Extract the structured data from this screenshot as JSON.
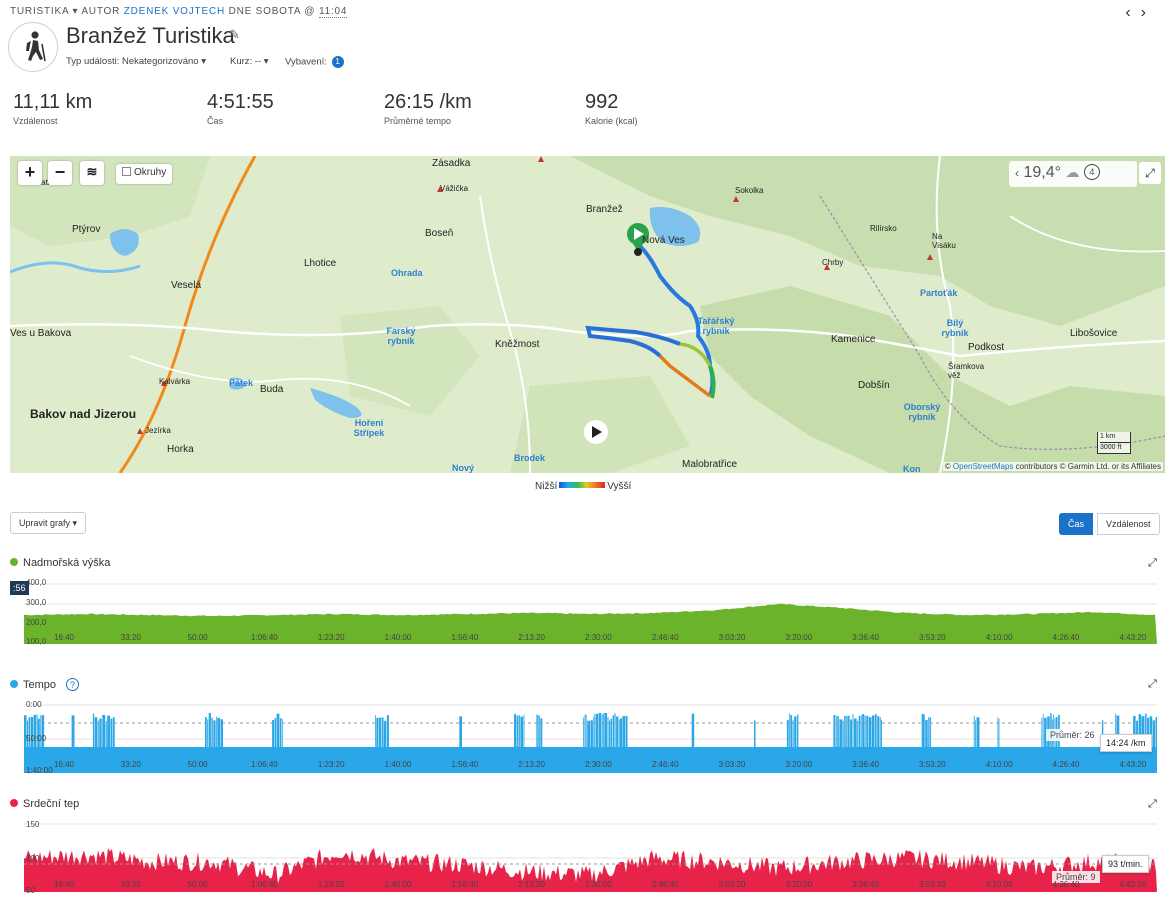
{
  "header": {
    "activity_type": "TURISTIKA",
    "author_prefix": "AUTOR",
    "author_name": "ZDENEK VOJTECH",
    "day_text": "DNE SOBOTA @",
    "time": "11:04",
    "prev_icon": "chevron-left-icon",
    "next_icon": "chevron-right-icon"
  },
  "activity": {
    "title": "Branžež Turistika",
    "icon": "hiker-icon",
    "event_type": "Typ události: Nekategorizováno",
    "course": "Kurz: --",
    "gear_label": "Vybavení:",
    "gear_count": "1"
  },
  "stats": [
    {
      "value": "11,11 km",
      "label": "Vzdálenost"
    },
    {
      "value": "4:51:55",
      "label": "Čas"
    },
    {
      "value": "26:15 /km",
      "label": "Průměrné tempo"
    },
    {
      "value": "992",
      "label": "Kalorie (kcal)"
    }
  ],
  "map": {
    "okruhy": "Okruhy",
    "temperature": "19,4°",
    "wind": "4",
    "scale_km": "1 km",
    "scale_ft": "3000 ft",
    "attribution_prefix": "©",
    "attribution_link": "OpenStreetMaps",
    "attribution_rest": "contributors © Garmin Ltd. or its Affiliates",
    "labels": {
      "zasadka": "Zásadka",
      "vazicka": "Vážička",
      "sokolka": "Sokolka",
      "branzez": "Branžež",
      "nova_ves": "Nová Ves",
      "ptyrov": "Ptýrov",
      "bosen": "Boseň",
      "lhotice": "Lhotice",
      "ohrada": "Ohrada",
      "vesela": "Veselá",
      "ves_u_bakova": "Ves u Bakova",
      "farsky": "Farský rybník",
      "kneznost": "Kněžmost",
      "tararsky": "Tařářský rybník",
      "chrby": "Chrby",
      "rilirsko": "Rilírsko",
      "na_visaku": "Na Visáku",
      "partotak": "Partoťák",
      "bily": "Bílý rybník",
      "kamenice": "Kamenice",
      "podkost": "Podkost",
      "libosovice": "Libošovice",
      "sramkova": "Šramkova věž",
      "dobsin": "Dobšín",
      "obora": "Oborský rybník",
      "kalvarka": "Kalvárka",
      "patek": "Pátek",
      "buda": "Buda",
      "bakov": "Bakov nad Jizerou",
      "horeni": "Hořeni Střípek",
      "jezirka": "Jezírka",
      "horka": "Horka",
      "brodek": "Brodek",
      "novy": "Nový",
      "malobratrice": "Malobratřice",
      "kon": "Kon",
      "blatka": "Blatka"
    }
  },
  "legend": {
    "low": "Nižší",
    "high": "Vyšší"
  },
  "controls": {
    "edit_charts": "Upravit grafy",
    "time": "Čas",
    "distance": "Vzdálenost"
  },
  "x_ticks": [
    "16:40",
    "33:20",
    "50:00",
    "1:06:40",
    "1:23:20",
    "1:40:00",
    "1:56:40",
    "2:13:20",
    "2:30:00",
    "2:46:40",
    "3:03:20",
    "3:20:00",
    "3:36:40",
    "3:53:20",
    "4:10:00",
    "4:26:40",
    "4:43:20"
  ],
  "charts": {
    "elevation": {
      "title": "Nadmořská výška",
      "color": "#6ab32a",
      "y_ticks": [
        "400,0",
        "300,0",
        "200,0",
        "100,0"
      ],
      "tooltip": ":56"
    },
    "pace": {
      "title": "Tempo",
      "color": "#2aa7e8",
      "y_ticks": [
        "0:00",
        "50:00",
        "1:40:00"
      ],
      "avg_label": "Průměr: 26",
      "tooltip": "14:24 /km"
    },
    "heart": {
      "title": "Srdeční tep",
      "color": "#e8234a",
      "y_ticks": [
        "150",
        "100",
        "50"
      ],
      "avg_label": "Průměr: 9",
      "tooltip": "93 t/min."
    }
  },
  "chart_data": [
    {
      "type": "area",
      "title": "Nadmořská výška",
      "ylim": [
        100,
        400
      ],
      "x": [
        "0:00",
        "16:40",
        "33:20",
        "50:00",
        "1:06:40",
        "1:23:20",
        "1:40:00",
        "1:56:40",
        "2:13:20",
        "2:30:00",
        "2:46:40",
        "3:03:20",
        "3:20:00",
        "3:36:40",
        "3:53:20",
        "4:10:00",
        "4:26:40",
        "4:43:20",
        "4:51:55"
      ],
      "values": [
        245,
        250,
        245,
        240,
        245,
        250,
        245,
        250,
        255,
        250,
        255,
        270,
        300,
        280,
        255,
        245,
        250,
        260,
        245
      ]
    },
    {
      "type": "area",
      "title": "Tempo",
      "ylim": [
        "1:40:00",
        "0:00"
      ]
    },
    {
      "type": "area",
      "title": "Srdeční tep",
      "ylim": [
        50,
        150
      ],
      "x": [
        "0:00",
        "16:40",
        "33:20",
        "50:00",
        "1:06:40",
        "1:23:20",
        "1:40:00",
        "1:56:40",
        "2:13:20",
        "2:30:00",
        "2:46:40",
        "3:03:20",
        "3:20:00",
        "3:36:40",
        "3:53:20",
        "4:10:00",
        "4:26:40",
        "4:43:20",
        "4:51:55"
      ],
      "values": [
        100,
        105,
        95,
        95,
        75,
        110,
        95,
        90,
        80,
        75,
        100,
        95,
        85,
        95,
        100,
        95,
        85,
        95,
        90
      ]
    }
  ]
}
